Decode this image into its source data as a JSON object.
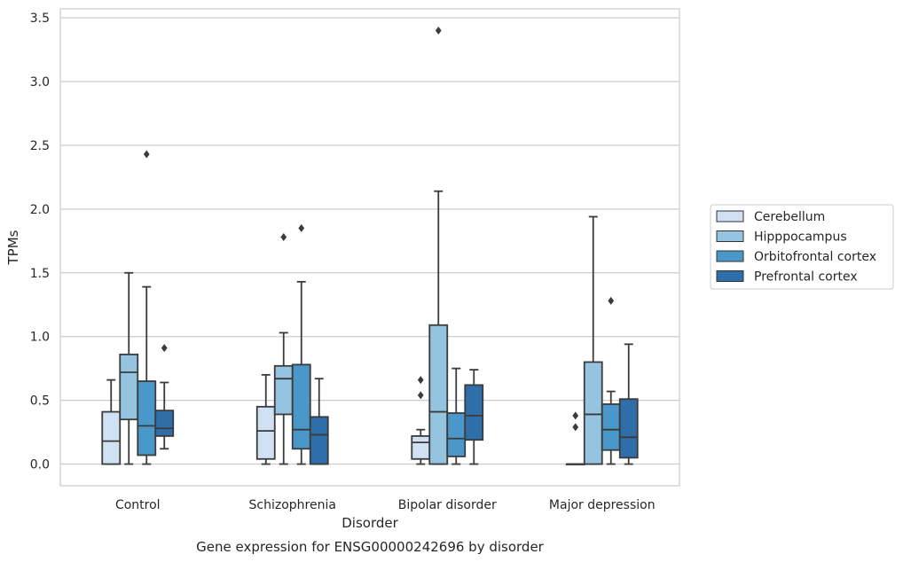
{
  "chart_data": {
    "type": "box",
    "caption": "Gene expression for ENSG00000242696 by disorder",
    "xlabel": "Disorder",
    "ylabel": "TPMs",
    "ylim": [
      -0.17,
      3.57
    ],
    "yticks": [
      "0.0",
      "0.5",
      "1.0",
      "1.5",
      "2.0",
      "2.5",
      "3.0",
      "3.5"
    ],
    "grid": "horizontal",
    "legend_position": "right",
    "categories": [
      "Control",
      "Schizophrenia",
      "Bipolar disorder",
      "Major depression"
    ],
    "series": [
      {
        "name": "Cerebellum",
        "color": "#cfe1f2",
        "boxes": [
          {
            "min": 0.0,
            "q1": 0.0,
            "median": 0.18,
            "q3": 0.41,
            "max": 0.66,
            "outliers": []
          },
          {
            "min": 0.0,
            "q1": 0.04,
            "median": 0.26,
            "q3": 0.45,
            "max": 0.7,
            "outliers": []
          },
          {
            "min": 0.0,
            "q1": 0.04,
            "median": 0.17,
            "q3": 0.22,
            "max": 0.27,
            "outliers": [
              0.54,
              0.66
            ]
          },
          {
            "min": 0.0,
            "q1": 0.0,
            "median": 0.0,
            "q3": 0.0,
            "max": 0.0,
            "outliers": [
              0.29,
              0.38
            ]
          }
        ]
      },
      {
        "name": "Hipppocampus",
        "color": "#94c4df",
        "boxes": [
          {
            "min": 0.0,
            "q1": 0.35,
            "median": 0.72,
            "q3": 0.86,
            "max": 1.5,
            "outliers": []
          },
          {
            "min": 0.0,
            "q1": 0.39,
            "median": 0.67,
            "q3": 0.77,
            "max": 1.03,
            "outliers": [
              1.78
            ]
          },
          {
            "min": 0.0,
            "q1": 0.0,
            "median": 0.41,
            "q3": 1.09,
            "max": 2.14,
            "outliers": [
              3.4
            ]
          },
          {
            "min": 0.0,
            "q1": 0.0,
            "median": 0.39,
            "q3": 0.8,
            "max": 1.94,
            "outliers": []
          }
        ]
      },
      {
        "name": "Orbitofrontal cortex",
        "color": "#4a98c9",
        "boxes": [
          {
            "min": 0.0,
            "q1": 0.07,
            "median": 0.3,
            "q3": 0.65,
            "max": 1.39,
            "outliers": [
              2.43
            ]
          },
          {
            "min": 0.0,
            "q1": 0.12,
            "median": 0.27,
            "q3": 0.78,
            "max": 1.43,
            "outliers": [
              1.85
            ]
          },
          {
            "min": 0.0,
            "q1": 0.06,
            "median": 0.2,
            "q3": 0.4,
            "max": 0.75,
            "outliers": []
          },
          {
            "min": 0.0,
            "q1": 0.11,
            "median": 0.27,
            "q3": 0.47,
            "max": 0.57,
            "outliers": [
              1.28
            ]
          }
        ]
      },
      {
        "name": "Prefrontal cortex",
        "color": "#2e6ea9",
        "boxes": [
          {
            "min": 0.12,
            "q1": 0.22,
            "median": 0.28,
            "q3": 0.42,
            "max": 0.64,
            "outliers": [
              0.91
            ]
          },
          {
            "min": 0.0,
            "q1": 0.0,
            "median": 0.23,
            "q3": 0.37,
            "max": 0.67,
            "outliers": []
          },
          {
            "min": 0.0,
            "q1": 0.19,
            "median": 0.38,
            "q3": 0.62,
            "max": 0.74,
            "outliers": []
          },
          {
            "min": 0.0,
            "q1": 0.05,
            "median": 0.21,
            "q3": 0.51,
            "max": 0.94,
            "outliers": []
          }
        ]
      }
    ]
  }
}
